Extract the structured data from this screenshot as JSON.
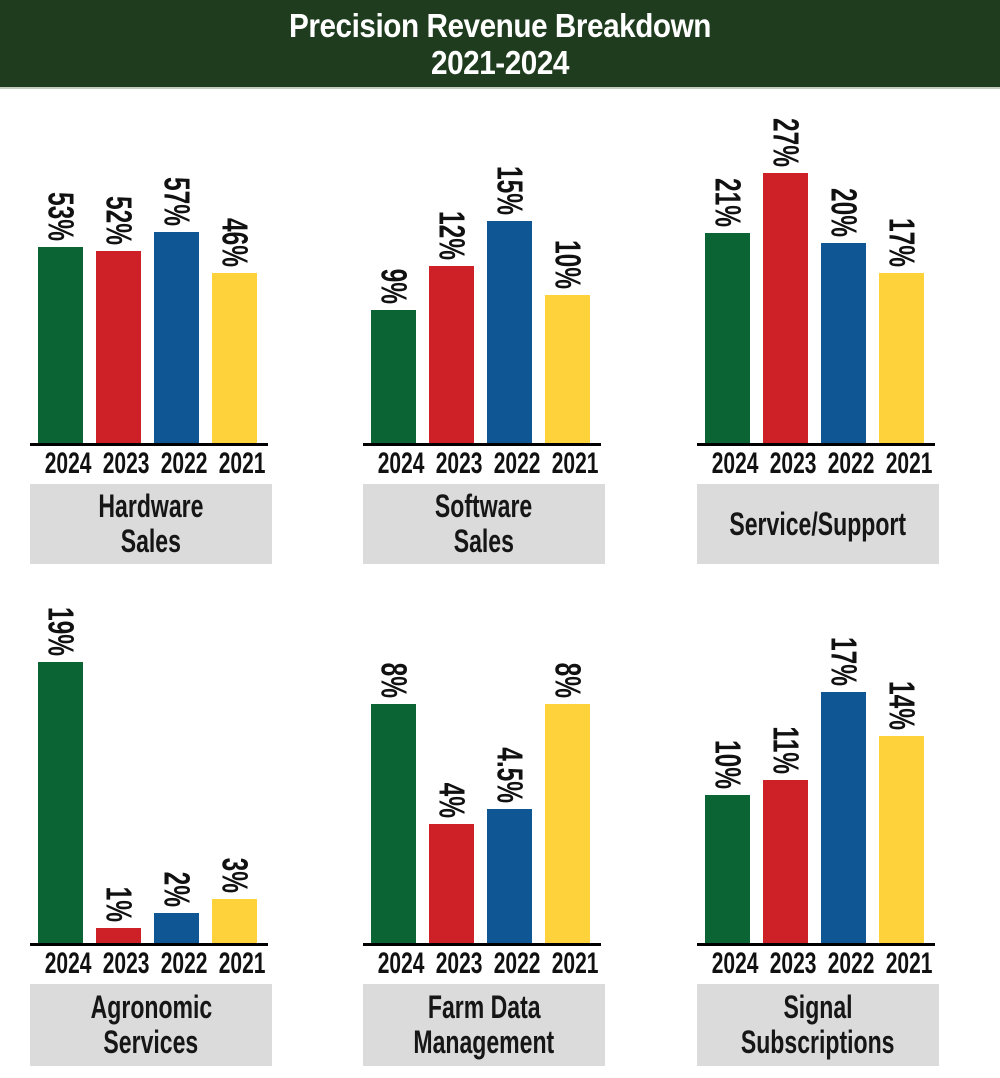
{
  "header": {
    "title_line1": "Precision Revenue Breakdown",
    "title_line2": "2021-2024"
  },
  "palette": {
    "header_bg": "#1f3c1f",
    "header_text": "#ffffff",
    "header_rule": "#c3cec1",
    "label_box_bg": "#dbdbdb",
    "axis": "#000000",
    "year_colors": {
      "2024": "#0b6434",
      "2023": "#ce2127",
      "2022": "#0e5794",
      "2021": "#fdd23a"
    }
  },
  "chart_data": [
    {
      "type": "bar",
      "title": "Hardware Sales",
      "title_lines": [
        "Hardware",
        "Sales"
      ],
      "categories": [
        "2024",
        "2023",
        "2022",
        "2021"
      ],
      "values": [
        53,
        52,
        57,
        46
      ],
      "labels": [
        "53%",
        "52%",
        "57%",
        "46%"
      ],
      "xlabel": "",
      "ylabel": "",
      "ylim": [
        0,
        92
      ],
      "grid": false,
      "legend": false
    },
    {
      "type": "bar",
      "title": "Software Sales",
      "title_lines": [
        "Software",
        "Sales"
      ],
      "categories": [
        "2024",
        "2023",
        "2022",
        "2021"
      ],
      "values": [
        9,
        12,
        15,
        10
      ],
      "labels": [
        "9%",
        "12%",
        "15%",
        "10%"
      ],
      "xlabel": "",
      "ylabel": "",
      "ylim": [
        0,
        23
      ],
      "grid": false,
      "legend": false
    },
    {
      "type": "bar",
      "title": "Service/Support",
      "title_lines": [
        "Service/Support"
      ],
      "categories": [
        "2024",
        "2023",
        "2022",
        "2021"
      ],
      "values": [
        21,
        27,
        20,
        17
      ],
      "labels": [
        "21%",
        "27%",
        "20%",
        "17%"
      ],
      "xlabel": "",
      "ylabel": "",
      "ylim": [
        0,
        34
      ],
      "grid": false,
      "legend": false
    },
    {
      "type": "bar",
      "title": "Agronomic Services",
      "title_lines": [
        "Agronomic",
        "Services"
      ],
      "categories": [
        "2024",
        "2023",
        "2022",
        "2021"
      ],
      "values": [
        19,
        1,
        2,
        3
      ],
      "labels": [
        "19%",
        "1%",
        "2%",
        "3%"
      ],
      "xlabel": "",
      "ylabel": "",
      "ylim": [
        0,
        23
      ],
      "grid": false,
      "legend": false
    },
    {
      "type": "bar",
      "title": "Farm Data Management",
      "title_lines": [
        "Farm Data",
        "Management"
      ],
      "categories": [
        "2024",
        "2023",
        "2022",
        "2021"
      ],
      "values": [
        8,
        4,
        4.5,
        8
      ],
      "labels": [
        "8%",
        "4%",
        "4.5%",
        "8%"
      ],
      "xlabel": "",
      "ylabel": "",
      "ylim": [
        0,
        11.4
      ],
      "grid": false,
      "legend": false
    },
    {
      "type": "bar",
      "title": "Signal Subscriptions",
      "title_lines": [
        "Signal",
        "Subscriptions"
      ],
      "categories": [
        "2024",
        "2023",
        "2022",
        "2021"
      ],
      "values": [
        10,
        11,
        17,
        14
      ],
      "labels": [
        "10%",
        "11%",
        "17%",
        "14%"
      ],
      "xlabel": "",
      "ylabel": "",
      "ylim": [
        0,
        23
      ],
      "grid": false,
      "legend": false
    }
  ]
}
